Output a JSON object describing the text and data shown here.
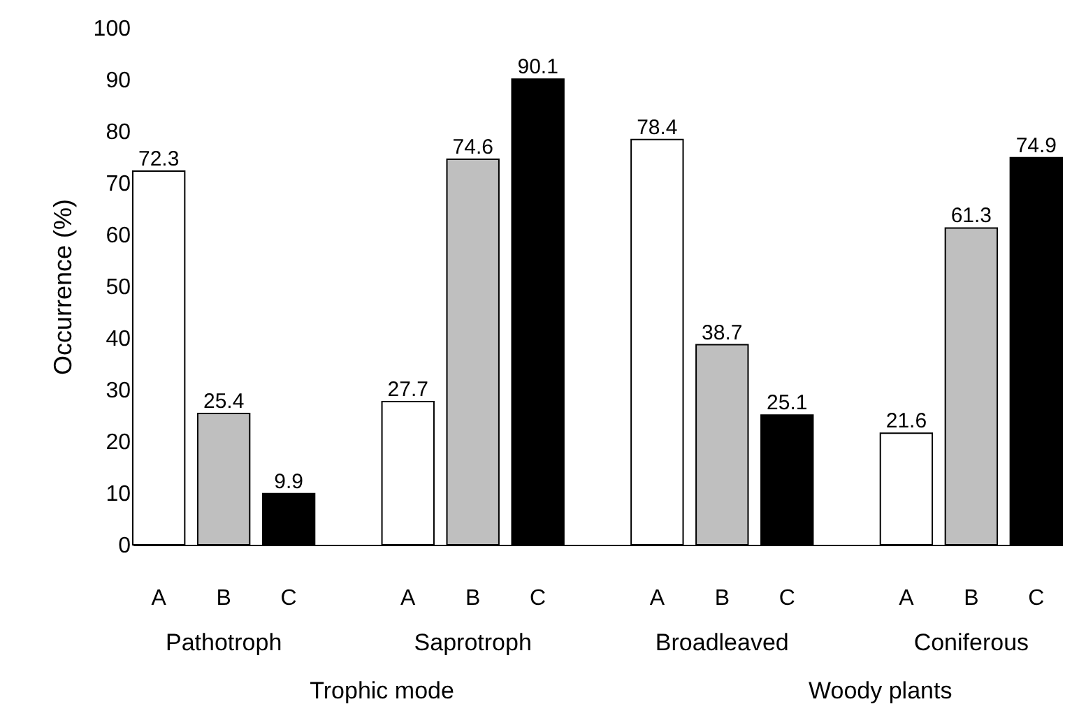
{
  "chart_data": {
    "type": "bar",
    "ylabel": "Occurrence (%)",
    "categories": [
      "Pathotroph",
      "Saprotroph",
      "Broadleaved",
      "Coniferous"
    ],
    "series": [
      {
        "name": "A",
        "color": "#ffffff",
        "values": [
          72.3,
          27.7,
          78.4,
          21.6
        ]
      },
      {
        "name": "B",
        "color": "#bfbfbf",
        "values": [
          25.4,
          74.6,
          38.7,
          61.3
        ]
      },
      {
        "name": "C",
        "color": "#000000",
        "values": [
          9.9,
          90.1,
          25.1,
          74.9
        ]
      }
    ],
    "ylim": [
      0,
      100
    ],
    "yticks": [
      0,
      10,
      20,
      30,
      40,
      50,
      60,
      70,
      80,
      90,
      100
    ],
    "grid": false,
    "data_labels": true,
    "annotations": [
      "Trophic mode",
      "Woody plants"
    ]
  }
}
